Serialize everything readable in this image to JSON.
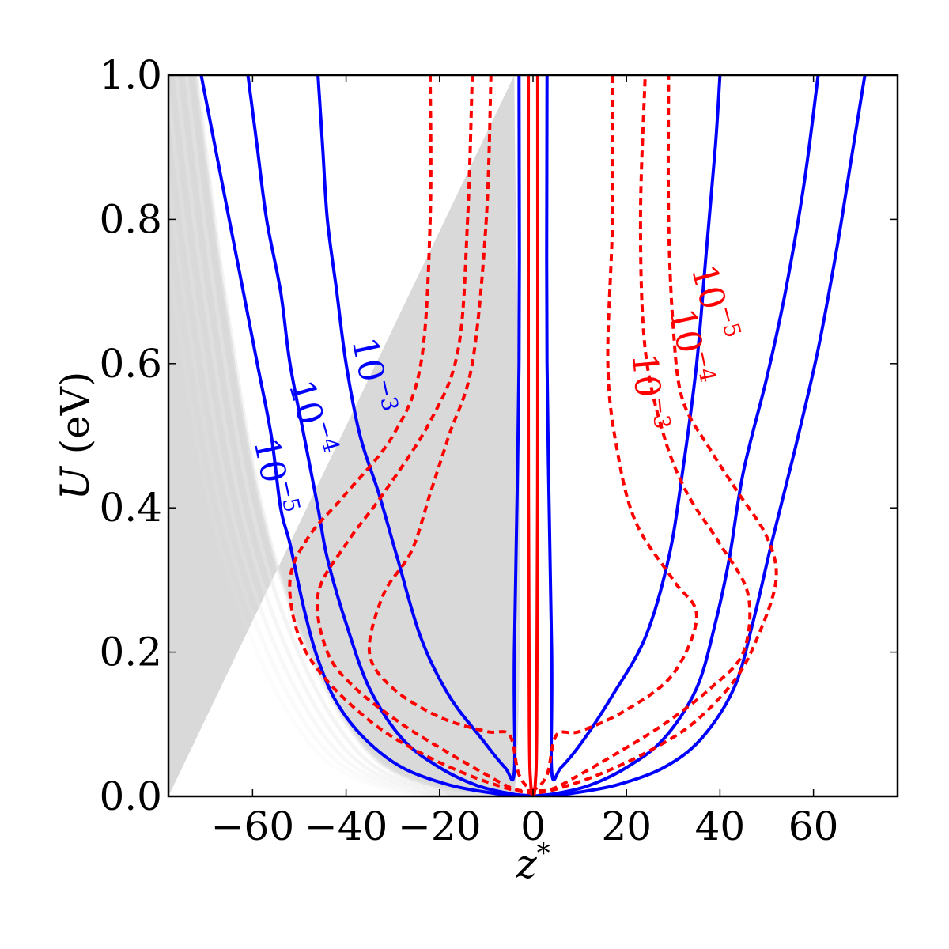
{
  "chart_data": {
    "type": "contour",
    "xlabel": "z*",
    "ylabel": "U (eV)",
    "xlim": [
      -78,
      78
    ],
    "ylim": [
      0.0,
      1.0
    ],
    "x_ticks": [
      -60,
      -40,
      -20,
      0,
      20,
      40,
      60
    ],
    "x_tick_labels": [
      "−60",
      "−40",
      "−20",
      "0",
      "20",
      "40",
      "60"
    ],
    "y_ticks": [
      0.0,
      0.2,
      0.4,
      0.6,
      0.8,
      1.0
    ],
    "y_tick_labels": [
      "0.0",
      "0.2",
      "0.4",
      "0.6",
      "0.8",
      "1.0"
    ],
    "grid": false,
    "colors": {
      "blue": "#0000ff",
      "red": "#ff0000",
      "shade": "#d9d9d9"
    },
    "shaded_region": {
      "description_points": [
        [
          -72,
          1.0
        ],
        [
          -66,
          0.7
        ],
        [
          -58,
          0.4
        ],
        [
          -48,
          0.2
        ],
        [
          -35,
          0.06
        ],
        [
          -20,
          0.01
        ],
        [
          -4,
          0.0
        ],
        [
          -4,
          1.0
        ]
      ]
    },
    "series": [
      {
        "style": "solid",
        "color": "#0000ff",
        "label_base": "10",
        "label_exp": "−5",
        "points": [
          [
            -71,
            1.0
          ],
          [
            -68,
            0.9
          ],
          [
            -65,
            0.8
          ],
          [
            -62,
            0.7
          ],
          [
            -59,
            0.6
          ],
          [
            -56,
            0.5
          ],
          [
            -54,
            0.4
          ],
          [
            -52,
            0.35
          ],
          [
            -49,
            0.26
          ],
          [
            -46,
            0.19
          ],
          [
            -42,
            0.13
          ],
          [
            -36,
            0.08
          ],
          [
            -28,
            0.04
          ],
          [
            -18,
            0.016
          ],
          [
            -8,
            0.004
          ],
          [
            -2,
            0.001
          ],
          [
            0,
            0.0
          ],
          [
            2,
            0.001
          ],
          [
            8,
            0.004
          ],
          [
            18,
            0.016
          ],
          [
            28,
            0.04
          ],
          [
            36,
            0.08
          ],
          [
            43,
            0.15
          ],
          [
            47,
            0.24
          ],
          [
            51,
            0.35
          ],
          [
            56,
            0.48
          ],
          [
            61,
            0.62
          ],
          [
            65,
            0.76
          ],
          [
            68,
            0.88
          ],
          [
            71,
            1.0
          ]
        ]
      },
      {
        "style": "solid",
        "color": "#0000ff",
        "label_base": "10",
        "label_exp": "−4",
        "points": [
          [
            -61,
            1.0
          ],
          [
            -59,
            0.9
          ],
          [
            -57,
            0.8
          ],
          [
            -54,
            0.7
          ],
          [
            -52,
            0.6
          ],
          [
            -49,
            0.5
          ],
          [
            -46,
            0.4
          ],
          [
            -44,
            0.33
          ],
          [
            -40,
            0.24
          ],
          [
            -35,
            0.15
          ],
          [
            -28,
            0.08
          ],
          [
            -20,
            0.04
          ],
          [
            -12,
            0.015
          ],
          [
            -5,
            0.004
          ],
          [
            -1,
            0.001
          ],
          [
            0,
            0.0
          ],
          [
            1,
            0.001
          ],
          [
            5,
            0.004
          ],
          [
            12,
            0.015
          ],
          [
            20,
            0.04
          ],
          [
            28,
            0.08
          ],
          [
            35,
            0.15
          ],
          [
            39,
            0.24
          ],
          [
            42,
            0.33
          ],
          [
            45,
            0.45
          ],
          [
            50,
            0.58
          ],
          [
            54,
            0.7
          ],
          [
            58,
            0.85
          ],
          [
            61,
            1.0
          ]
        ]
      },
      {
        "style": "solid",
        "color": "#0000ff",
        "label_base": "10",
        "label_exp": "−3",
        "points": [
          [
            -46,
            1.0
          ],
          [
            -45,
            0.9
          ],
          [
            -44,
            0.8
          ],
          [
            -42,
            0.7
          ],
          [
            -40,
            0.6
          ],
          [
            -37,
            0.5
          ],
          [
            -33,
            0.42
          ],
          [
            -29,
            0.33
          ],
          [
            -24,
            0.22
          ],
          [
            -18,
            0.14
          ],
          [
            -11,
            0.08
          ],
          [
            -6,
            0.04
          ],
          [
            -4,
            0.035
          ],
          [
            -4,
            0.2
          ],
          [
            -3,
            0.6
          ],
          [
            -3,
            1.0
          ]
        ]
      },
      {
        "style": "solid",
        "color": "#0000ff",
        "label_base": "",
        "label_exp": "",
        "points": [
          [
            3,
            1.0
          ],
          [
            3,
            0.6
          ],
          [
            4,
            0.2
          ],
          [
            4,
            0.035
          ],
          [
            6,
            0.04
          ],
          [
            11,
            0.08
          ],
          [
            17,
            0.14
          ],
          [
            24,
            0.22
          ],
          [
            29,
            0.33
          ],
          [
            32,
            0.45
          ],
          [
            35,
            0.6
          ],
          [
            37,
            0.75
          ],
          [
            39,
            0.9
          ],
          [
            40,
            1.0
          ]
        ]
      },
      {
        "style": "solid",
        "color": "#ff0000",
        "label_base": "",
        "label_exp": "",
        "points": [
          [
            -1,
            1.0
          ],
          [
            -1,
            0.5
          ],
          [
            -0.8,
            0.1
          ],
          [
            -0.5,
            0.02
          ],
          [
            0,
            0.0
          ],
          [
            0.5,
            0.02
          ],
          [
            0.8,
            0.1
          ],
          [
            1,
            0.5
          ],
          [
            1,
            1.0
          ]
        ]
      },
      {
        "style": "dashed",
        "color": "#ff0000",
        "label_base": "10",
        "label_exp": "−5",
        "points": [
          [
            -22,
            1.0
          ],
          [
            -22,
            0.8
          ],
          [
            -24,
            0.6
          ],
          [
            -30,
            0.5
          ],
          [
            -40,
            0.42
          ],
          [
            -48,
            0.36
          ],
          [
            -52,
            0.3
          ],
          [
            -50,
            0.22
          ],
          [
            -44,
            0.16
          ],
          [
            -34,
            0.1
          ],
          [
            -24,
            0.06
          ],
          [
            -14,
            0.03
          ],
          [
            -6,
            0.012
          ],
          [
            -2,
            0.006
          ],
          [
            0,
            0.005
          ],
          [
            2,
            0.006
          ],
          [
            6,
            0.012
          ],
          [
            14,
            0.03
          ],
          [
            24,
            0.06
          ],
          [
            34,
            0.1
          ],
          [
            43,
            0.16
          ],
          [
            48,
            0.22
          ],
          [
            52,
            0.3
          ],
          [
            50,
            0.36
          ],
          [
            44,
            0.42
          ],
          [
            38,
            0.48
          ],
          [
            32,
            0.55
          ],
          [
            30,
            0.65
          ],
          [
            29,
            0.8
          ],
          [
            29,
            1.0
          ]
        ]
      },
      {
        "style": "dashed",
        "color": "#ff0000",
        "label_base": "10",
        "label_exp": "−4",
        "points": [
          [
            -13,
            1.0
          ],
          [
            -14,
            0.8
          ],
          [
            -16,
            0.62
          ],
          [
            -22,
            0.52
          ],
          [
            -32,
            0.42
          ],
          [
            -40,
            0.35
          ],
          [
            -46,
            0.28
          ],
          [
            -44,
            0.2
          ],
          [
            -38,
            0.15
          ],
          [
            -28,
            0.1
          ],
          [
            -18,
            0.06
          ],
          [
            -10,
            0.03
          ],
          [
            -4,
            0.01
          ],
          [
            0,
            0.008
          ],
          [
            4,
            0.01
          ],
          [
            10,
            0.03
          ],
          [
            18,
            0.06
          ],
          [
            28,
            0.1
          ],
          [
            38,
            0.15
          ],
          [
            45,
            0.2
          ],
          [
            46,
            0.28
          ],
          [
            40,
            0.35
          ],
          [
            33,
            0.42
          ],
          [
            28,
            0.5
          ],
          [
            24,
            0.62
          ],
          [
            23,
            0.8
          ],
          [
            24,
            1.0
          ]
        ]
      },
      {
        "style": "dashed",
        "color": "#ff0000",
        "label_base": "10",
        "label_exp": "−3",
        "points": [
          [
            -9,
            1.0
          ],
          [
            -10,
            0.8
          ],
          [
            -13,
            0.6
          ],
          [
            -18,
            0.5
          ],
          [
            -22,
            0.42
          ],
          [
            -26,
            0.34
          ],
          [
            -32,
            0.28
          ],
          [
            -35,
            0.2
          ],
          [
            -30,
            0.15
          ],
          [
            -20,
            0.11
          ],
          [
            -10,
            0.09
          ],
          [
            -5,
            0.085
          ],
          [
            -3,
            0.03
          ],
          [
            0,
            0.01
          ],
          [
            3,
            0.03
          ],
          [
            5,
            0.085
          ],
          [
            10,
            0.09
          ],
          [
            20,
            0.12
          ],
          [
            30,
            0.17
          ],
          [
            35,
            0.25
          ],
          [
            30,
            0.3
          ],
          [
            22,
            0.38
          ],
          [
            18,
            0.48
          ],
          [
            16,
            0.6
          ],
          [
            17,
            0.8
          ],
          [
            17,
            1.0
          ]
        ]
      }
    ],
    "contour_labels": [
      {
        "color": "#0000ff",
        "base": "10",
        "exp": "−5",
        "x": -58,
        "y": 0.44,
        "angle": 78
      },
      {
        "color": "#0000ff",
        "base": "10",
        "exp": "−4",
        "x": -50,
        "y": 0.52,
        "angle": 74
      },
      {
        "color": "#0000ff",
        "base": "10",
        "exp": "−3",
        "x": -37,
        "y": 0.58,
        "angle": 78
      },
      {
        "color": "#ff0000",
        "base": "10",
        "exp": "−5",
        "x": 36,
        "y": 0.68,
        "angle": 75
      },
      {
        "color": "#ff0000",
        "base": "10",
        "exp": "−4",
        "x": 31,
        "y": 0.62,
        "angle": 78
      },
      {
        "color": "#ff0000",
        "base": "10",
        "exp": "−3",
        "x": 22,
        "y": 0.56,
        "angle": 85
      }
    ]
  }
}
